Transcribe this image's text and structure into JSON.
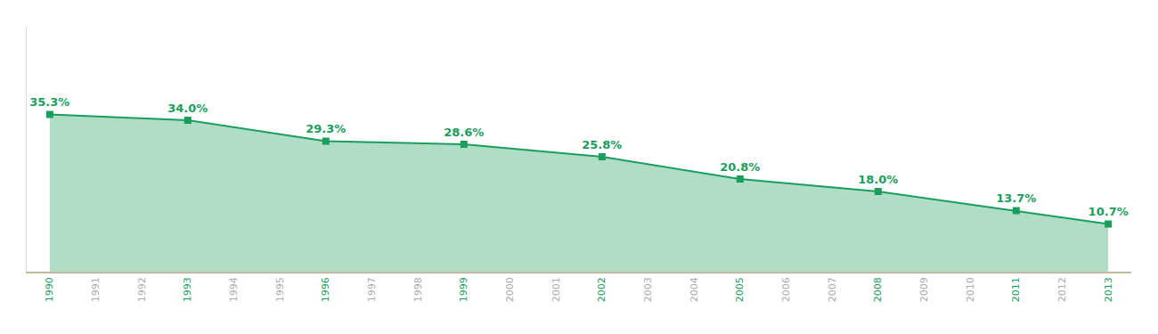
{
  "chart_data": {
    "type": "area",
    "x": [
      1990,
      1993,
      1996,
      1999,
      2002,
      2005,
      2008,
      2011,
      2013
    ],
    "values": [
      35.3,
      34.0,
      29.3,
      28.6,
      25.8,
      20.8,
      18.0,
      13.7,
      10.7
    ],
    "value_labels": [
      "35.3%",
      "34.0%",
      "29.3%",
      "28.6%",
      "25.8%",
      "20.8%",
      "18.0%",
      "13.7%",
      "10.7%"
    ],
    "data_labels": true,
    "color": "#1A9E5C",
    "marker": "square",
    "xlim": [
      1989.5,
      2013.5
    ],
    "xticks": [
      1990,
      1991,
      1992,
      1993,
      1994,
      1995,
      1996,
      1997,
      1998,
      1999,
      2000,
      2001,
      2002,
      2003,
      2004,
      2005,
      2006,
      2007,
      2008,
      2009,
      2010,
      2011,
      2012,
      2013
    ],
    "ylim": [
      0,
      55
    ],
    "tick_labels": "x",
    "grid": false
  }
}
